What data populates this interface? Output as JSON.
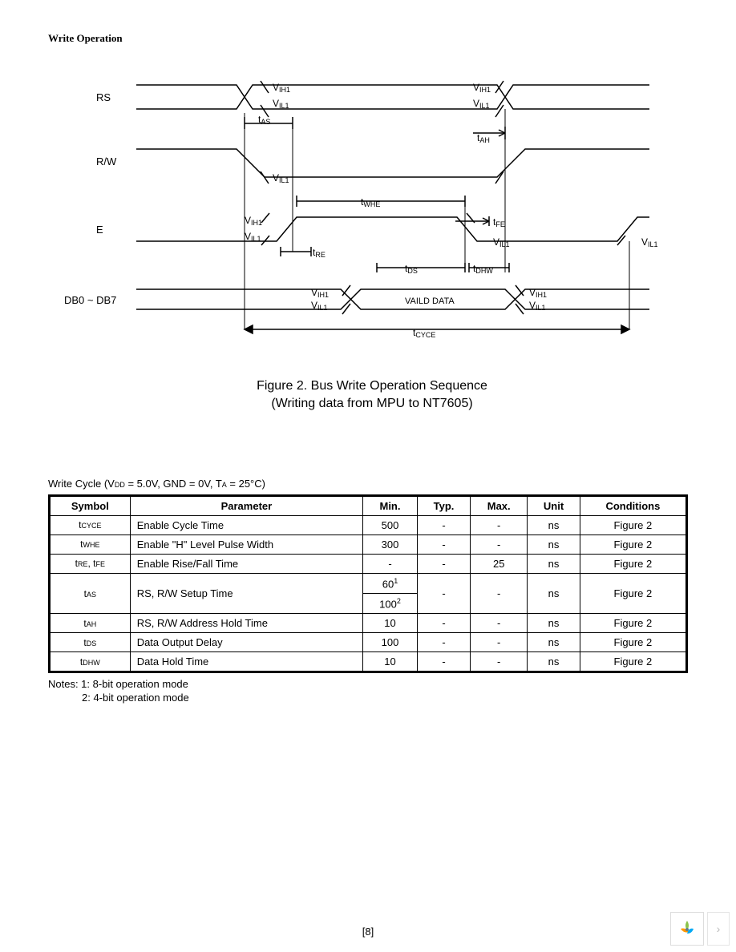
{
  "section_title": "Write Operation",
  "diagram": {
    "signals": [
      "RS",
      "R/W",
      "E",
      "DB0 ~ DB7"
    ],
    "labels": {
      "vih1": "VIH1",
      "vil1": "VIL1",
      "tas": "tAS",
      "tah": "tAH",
      "twhe": "tWHE",
      "tfe": "tFE",
      "tre": "tRE",
      "tds": "tDS",
      "tdhw": "tDHW",
      "tcyce": "tCYCE",
      "valid_data": "VAILD DATA"
    },
    "caption_line1": "Figure 2. Bus Write Operation Sequence",
    "caption_line2": "(Writing data from MPU to NT7605)"
  },
  "table": {
    "title_prefix": "Write Cycle  (V",
    "title_dd": "DD",
    "title_mid": " = 5.0V, GND = 0V, T",
    "title_a": "A",
    "title_suffix": " = 25°C)",
    "headers": [
      "Symbol",
      "Parameter",
      "Min.",
      "Typ.",
      "Max.",
      "Unit",
      "Conditions"
    ],
    "rows": [
      {
        "symbol": "tCYCE",
        "param": "Enable Cycle Time",
        "min": "500",
        "typ": "-",
        "max": "-",
        "unit": "ns",
        "cond": "Figure 2",
        "sup": null
      },
      {
        "symbol": "tWHE",
        "param": "Enable \"H\" Level Pulse Width",
        "min": "300",
        "typ": "-",
        "max": "-",
        "unit": "ns",
        "cond": "Figure 2",
        "sup": null
      },
      {
        "symbol": "tRE, tFE",
        "param": "Enable Rise/Fall Time",
        "min": "-",
        "typ": "-",
        "max": "25",
        "unit": "ns",
        "cond": "Figure 2",
        "sup": null
      },
      {
        "symbol": "tAS",
        "param": "RS, R/W Setup Time",
        "min": "60",
        "min2": "100",
        "typ": "-",
        "max": "-",
        "unit": "ns",
        "cond": "Figure 2",
        "sup1": "1",
        "sup2": "2"
      },
      {
        "symbol": "tAH",
        "param": "RS, R/W Address Hold Time",
        "min": "10",
        "typ": "-",
        "max": "-",
        "unit": "ns",
        "cond": "Figure 2",
        "sup": null
      },
      {
        "symbol": "tDS",
        "param": "Data Output Delay",
        "min": "100",
        "typ": "-",
        "max": "-",
        "unit": "ns",
        "cond": "Figure 2",
        "sup": null
      },
      {
        "symbol": "tDHW",
        "param": "Data Hold Time",
        "min": "10",
        "typ": "-",
        "max": "-",
        "unit": "ns",
        "cond": "Figure 2",
        "sup": null
      }
    ]
  },
  "notes": {
    "line1": "Notes: 1: 8-bit operation mode",
    "line2": "2: 4-bit operation mode"
  },
  "page_number": "[8]",
  "colors": {
    "text": "#000000",
    "line": "#000000",
    "bg": "#ffffff",
    "nav_border": "#dddddd"
  }
}
